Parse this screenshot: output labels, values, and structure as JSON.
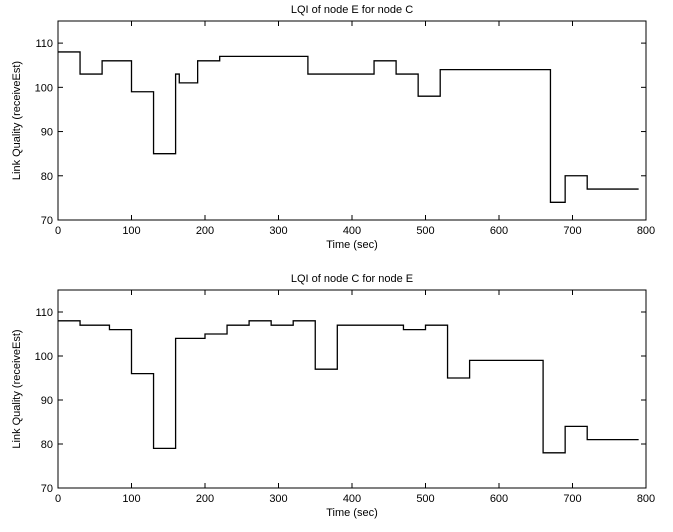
{
  "chart_data": [
    {
      "type": "line",
      "title": "LQI of node E for node C",
      "xlabel": "Time (sec)",
      "ylabel": "Link Quality (receiveEst)",
      "xlim": [
        0,
        800
      ],
      "ylim": [
        70,
        115
      ],
      "xticks": [
        0,
        100,
        200,
        300,
        400,
        500,
        600,
        700,
        800
      ],
      "yticks": [
        70,
        80,
        90,
        100,
        110
      ],
      "grid": false,
      "color": "#000000",
      "series": [
        {
          "step": "post",
          "x": [
            0,
            30,
            60,
            100,
            130,
            160,
            165,
            190,
            220,
            340,
            430,
            460,
            490,
            520,
            670,
            690,
            720,
            790
          ],
          "y": [
            108,
            103,
            106,
            99,
            85,
            103,
            101,
            106,
            107,
            103,
            106,
            103,
            98,
            104,
            74,
            80,
            77,
            77
          ]
        }
      ]
    },
    {
      "type": "line",
      "title": "LQI of node C for node E",
      "xlabel": "Time (sec)",
      "ylabel": "Link Quality (receiveEst)",
      "xlim": [
        0,
        800
      ],
      "ylim": [
        70,
        115
      ],
      "xticks": [
        0,
        100,
        200,
        300,
        400,
        500,
        600,
        700,
        800
      ],
      "yticks": [
        70,
        80,
        90,
        100,
        110
      ],
      "grid": false,
      "color": "#000000",
      "series": [
        {
          "step": "post",
          "x": [
            0,
            30,
            70,
            100,
            130,
            160,
            200,
            230,
            260,
            290,
            320,
            350,
            380,
            470,
            500,
            530,
            560,
            660,
            690,
            720,
            790
          ],
          "y": [
            108,
            107,
            106,
            96,
            79,
            104,
            105,
            107,
            108,
            107,
            108,
            97,
            107,
            106,
            107,
            95,
            99,
            78,
            84,
            81,
            81
          ]
        }
      ]
    }
  ]
}
